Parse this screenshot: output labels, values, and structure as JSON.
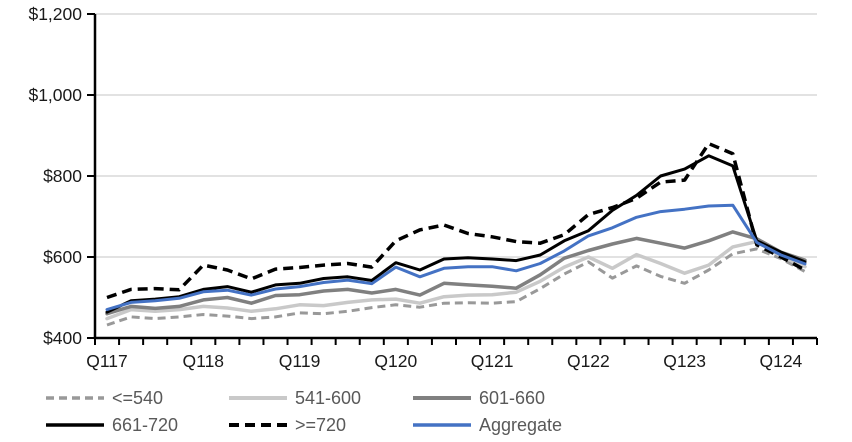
{
  "chart_data": {
    "type": "line",
    "title": "",
    "xlabel": "",
    "ylabel": "",
    "y_unit": "$",
    "ylim": [
      400,
      1200
    ],
    "y_ticks": [
      400,
      600,
      800,
      1000,
      1200
    ],
    "y_tick_labels": [
      "$400",
      "$600",
      "$800",
      "$1,000",
      "$1,200"
    ],
    "grid": "horizontal",
    "legend_position": "bottom",
    "categories": [
      "Q117",
      "Q217",
      "Q317",
      "Q417",
      "Q118",
      "Q218",
      "Q318",
      "Q418",
      "Q119",
      "Q219",
      "Q319",
      "Q419",
      "Q120",
      "Q220",
      "Q320",
      "Q420",
      "Q121",
      "Q221",
      "Q321",
      "Q421",
      "Q122",
      "Q222",
      "Q322",
      "Q422",
      "Q123",
      "Q223",
      "Q323",
      "Q423",
      "Q124",
      "Q224"
    ],
    "x_tick_labels": [
      "Q117",
      "Q118",
      "Q119",
      "Q120",
      "Q121",
      "Q122",
      "Q123",
      "Q124"
    ],
    "x_tick_label_indices": [
      0,
      4,
      8,
      12,
      16,
      20,
      24,
      28
    ],
    "series": [
      {
        "key": "le540",
        "label": "<=540",
        "color": "#999999",
        "dash": "8 5",
        "width": 3,
        "values": [
          432,
          452,
          448,
          452,
          458,
          454,
          448,
          452,
          462,
          460,
          466,
          475,
          482,
          476,
          486,
          487,
          486,
          490,
          522,
          558,
          588,
          548,
          578,
          552,
          535,
          568,
          608,
          620,
          596,
          564
        ]
      },
      {
        "key": "541-600",
        "label": "541-600",
        "color": "#C9C9C9",
        "dash": null,
        "width": 3.5,
        "values": [
          448,
          470,
          466,
          470,
          478,
          474,
          466,
          472,
          482,
          480,
          488,
          494,
          496,
          486,
          502,
          506,
          507,
          513,
          540,
          575,
          600,
          572,
          606,
          584,
          560,
          580,
          625,
          638,
          602,
          576
        ]
      },
      {
        "key": "601-660",
        "label": "601-660",
        "color": "#808080",
        "dash": null,
        "width": 3.5,
        "values": [
          460,
          478,
          473,
          478,
          494,
          500,
          486,
          505,
          507,
          516,
          520,
          511,
          520,
          506,
          535,
          531,
          528,
          523,
          556,
          597,
          616,
          632,
          646,
          634,
          622,
          640,
          662,
          645,
          612,
          592
        ]
      },
      {
        "key": "661-720",
        "label": "661-720",
        "color": "#000000",
        "dash": null,
        "width": 3,
        "values": [
          464,
          492,
          496,
          502,
          520,
          527,
          513,
          531,
          535,
          547,
          551,
          542,
          586,
          568,
          595,
          598,
          595,
          591,
          605,
          640,
          665,
          715,
          752,
          800,
          817,
          850,
          825,
          640,
          612,
          588
        ]
      },
      {
        "key": "ge720",
        "label": ">=720",
        "color": "#000000",
        "dash": "10 6",
        "width": 3.5,
        "values": [
          500,
          520,
          522,
          519,
          580,
          568,
          546,
          570,
          574,
          580,
          584,
          575,
          640,
          667,
          679,
          658,
          650,
          638,
          634,
          655,
          705,
          722,
          745,
          785,
          790,
          880,
          855,
          630,
          600,
          568
        ]
      },
      {
        "key": "aggregate",
        "label": "Aggregate",
        "color": "#4472C4",
        "dash": null,
        "width": 3,
        "values": [
          470,
          488,
          492,
          498,
          514,
          518,
          506,
          521,
          527,
          537,
          543,
          534,
          575,
          551,
          572,
          576,
          576,
          566,
          584,
          615,
          652,
          672,
          698,
          712,
          718,
          726,
          728,
          636,
          605,
          583
        ]
      }
    ],
    "axis_color": "#000000",
    "gridline_color": "#D9D9D9",
    "legend_text_color": "#595959",
    "legend_rows": [
      [
        "le540",
        "541-600",
        "601-660"
      ],
      [
        "661-720",
        "ge720",
        "aggregate"
      ]
    ]
  }
}
